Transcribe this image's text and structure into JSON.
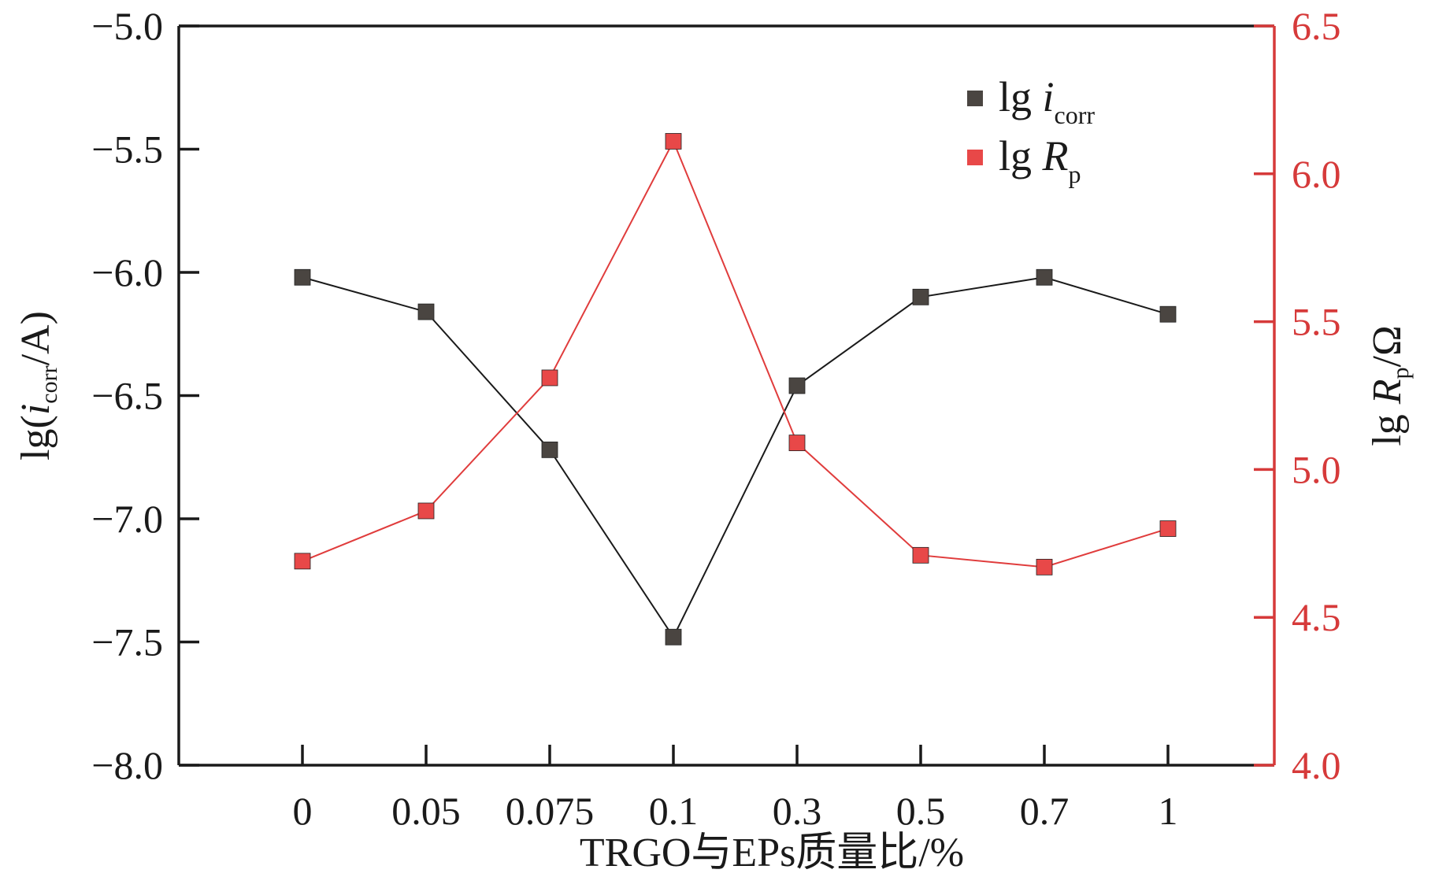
{
  "chart_data": {
    "type": "line",
    "categories": [
      "0",
      "0.05",
      "0.075",
      "0.1",
      "0.3",
      "0.5",
      "0.7",
      "1"
    ],
    "xlabel": "TRGO与EPs质量比/%",
    "left_axis": {
      "label_prefix": "lg(",
      "label_italic": "i",
      "label_sub": "corr",
      "label_suffix": "/A)",
      "range": [
        -8.0,
        -5.0
      ],
      "ticks": [
        "−8.0",
        "−7.5",
        "−7.0",
        "−6.5",
        "−6.0",
        "−5.5",
        "−5.0"
      ],
      "tick_values": [
        -8.0,
        -7.5,
        -7.0,
        -6.5,
        -6.0,
        -5.5,
        -5.0
      ]
    },
    "right_axis": {
      "label_prefix": "lg ",
      "label_italic": "R",
      "label_sub": "p",
      "label_suffix": "/Ω",
      "range": [
        4.0,
        6.5
      ],
      "ticks": [
        "4.0",
        "4.5",
        "5.0",
        "5.5",
        "6.0",
        "6.5"
      ],
      "tick_values": [
        4.0,
        4.5,
        5.0,
        5.5,
        6.0,
        6.5
      ],
      "color": "#d63a3a"
    },
    "series": [
      {
        "name": "lg icorr",
        "legend_prefix": "lg ",
        "legend_italic": "i",
        "legend_sub": "corr",
        "axis": "left",
        "color": "#4a4541",
        "line_color": "#1a1a1a",
        "values": [
          -6.02,
          -6.16,
          -6.72,
          -7.48,
          -6.46,
          -6.1,
          -6.02,
          -6.17
        ]
      },
      {
        "name": "lg Rp",
        "legend_prefix": "lg ",
        "legend_italic": "R",
        "legend_sub": "p",
        "axis": "right",
        "color": "#e84848",
        "line_color": "#e03c3c",
        "values": [
          4.69,
          4.86,
          5.31,
          6.11,
          5.09,
          4.71,
          4.67,
          4.8
        ]
      }
    ],
    "legend_position": "top-right",
    "grid": false
  }
}
